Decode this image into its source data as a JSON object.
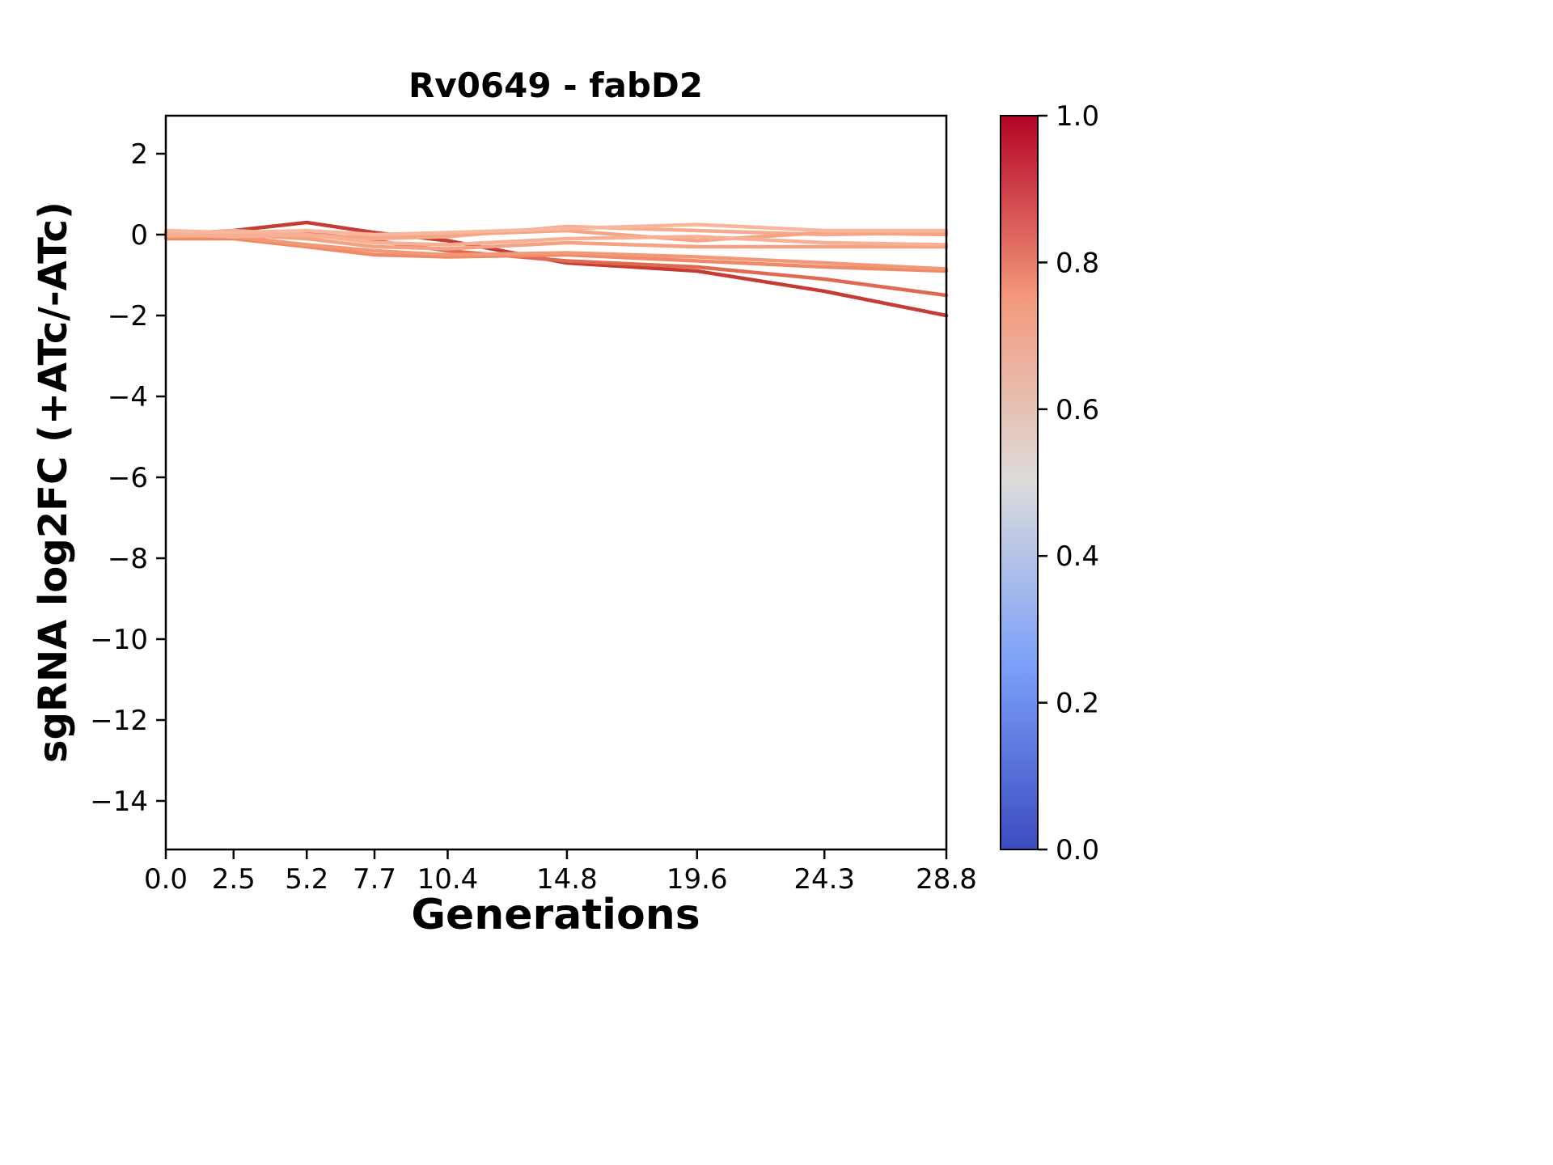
{
  "chart_data": {
    "type": "line",
    "title": "Rv0649 - fabD2",
    "xlabel": "Generations",
    "ylabel": "sgRNA log2FC (+ATc/-ATc)",
    "x": [
      0.0,
      2.5,
      5.2,
      7.7,
      10.4,
      14.8,
      19.6,
      24.3,
      28.8
    ],
    "xlim": [
      0.0,
      28.8
    ],
    "ylim": [
      -15.2,
      2.94
    ],
    "xticks": {
      "values": [
        0.0,
        2.5,
        5.2,
        7.7,
        10.4,
        14.8,
        19.6,
        24.3,
        28.8
      ],
      "labels": [
        "0.0",
        "2.5",
        "5.2",
        "7.7",
        "10.4",
        "14.8",
        "19.6",
        "24.3",
        "28.8"
      ]
    },
    "yticks": {
      "values": [
        2,
        0,
        -2,
        -4,
        -6,
        -8,
        -10,
        -12,
        -14
      ],
      "labels": [
        "2",
        "0",
        "−2",
        "−4",
        "−6",
        "−8",
        "−10",
        "−12",
        "−14"
      ]
    },
    "grid": false,
    "axes_color": "#000000",
    "background_color": "#ffffff",
    "series": [
      {
        "colorbar_value": 0.97,
        "color": "#c43c33",
        "y": [
          0.0,
          0.1,
          0.3,
          0.05,
          -0.15,
          -0.7,
          -0.9,
          -1.4,
          -2.0
        ]
      },
      {
        "colorbar_value": 0.85,
        "color": "#df6a50",
        "y": [
          -0.05,
          0.05,
          0.05,
          -0.15,
          -0.4,
          -0.65,
          -0.8,
          -1.1,
          -1.5
        ]
      },
      {
        "colorbar_value": 0.78,
        "color": "#ef8a68",
        "y": [
          -0.1,
          -0.1,
          -0.3,
          -0.5,
          -0.55,
          -0.5,
          -0.65,
          -0.8,
          -0.9
        ]
      },
      {
        "colorbar_value": 0.74,
        "color": "#f29877",
        "y": [
          0.0,
          -0.05,
          -0.25,
          -0.4,
          -0.5,
          -0.45,
          -0.55,
          -0.7,
          -0.85
        ]
      },
      {
        "colorbar_value": 0.71,
        "color": "#f4a283",
        "y": [
          0.05,
          0.0,
          -0.1,
          -0.3,
          -0.35,
          -0.2,
          -0.3,
          -0.3,
          -0.3
        ]
      },
      {
        "colorbar_value": 0.68,
        "color": "#f6ab8d",
        "y": [
          0.0,
          0.1,
          0.0,
          -0.1,
          -0.05,
          0.2,
          0.1,
          0.0,
          0.05
        ]
      },
      {
        "colorbar_value": 0.7,
        "color": "#f5a586",
        "y": [
          -0.05,
          0.0,
          -0.05,
          -0.05,
          0.0,
          0.1,
          -0.15,
          0.05,
          0.0
        ]
      },
      {
        "colorbar_value": 0.63,
        "color": "#f8b79c",
        "y": [
          0.1,
          0.05,
          0.1,
          0.0,
          0.05,
          0.15,
          0.25,
          0.1,
          0.1
        ]
      },
      {
        "colorbar_value": 0.66,
        "color": "#f7b094",
        "y": [
          0.0,
          -0.05,
          0.0,
          -0.2,
          -0.25,
          -0.1,
          -0.05,
          -0.2,
          -0.25
        ]
      }
    ],
    "colorbar": {
      "min": 0.0,
      "max": 1.0,
      "ticks": {
        "values": [
          0.0,
          0.2,
          0.4,
          0.6,
          0.8,
          1.0
        ],
        "labels": [
          "0.0",
          "0.2",
          "0.4",
          "0.6",
          "0.8",
          "1.0"
        ]
      },
      "colormap": "coolwarm",
      "stops": [
        {
          "pos": 0.0,
          "color": "#3b4cc0"
        },
        {
          "pos": 0.25,
          "color": "#7b9ff9"
        },
        {
          "pos": 0.5,
          "color": "#dcdcdc"
        },
        {
          "pos": 0.75,
          "color": "#f49a7b"
        },
        {
          "pos": 1.0,
          "color": "#b40426"
        }
      ]
    }
  }
}
